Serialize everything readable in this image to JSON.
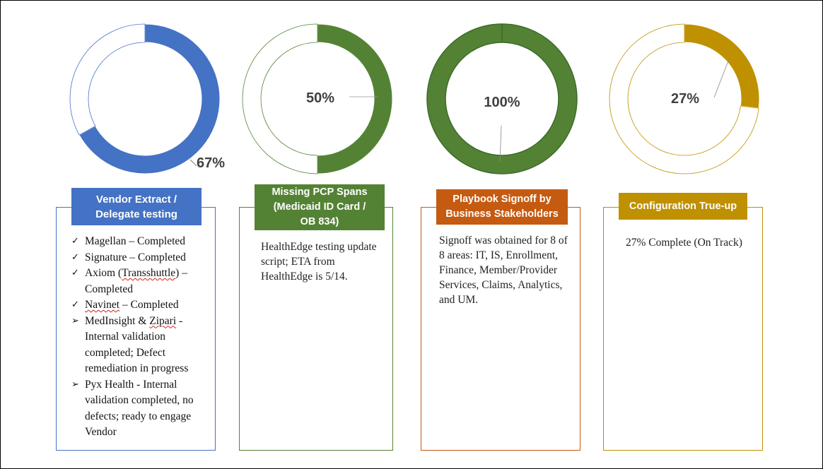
{
  "colors": {
    "blue": "#4472C4",
    "green": "#548235",
    "green_dark": "#3D6B2A",
    "orange": "#C55A11",
    "gold": "#BF9000",
    "text": "#404040"
  },
  "chart_data": [
    {
      "type": "pie",
      "subtype": "doughnut",
      "series": [
        {
          "values": [
            67,
            33
          ]
        }
      ],
      "data_label": "67%",
      "color": "#4472C4"
    },
    {
      "type": "pie",
      "subtype": "doughnut",
      "series": [
        {
          "values": [
            50,
            50
          ]
        }
      ],
      "data_label": "50%",
      "color": "#548235"
    },
    {
      "type": "pie",
      "subtype": "doughnut",
      "series": [
        {
          "values": [
            100,
            0
          ]
        }
      ],
      "data_label": "100%",
      "color": "#548235"
    },
    {
      "type": "pie",
      "subtype": "doughnut",
      "series": [
        {
          "values": [
            27,
            73
          ]
        }
      ],
      "data_label": "27%",
      "color": "#BF9000"
    }
  ],
  "panels": [
    {
      "title_line1": "Vendor Extract /",
      "title_line2": "Delegate testing",
      "items": [
        {
          "marker": "check-icon",
          "text1": "Magellan – Completed"
        },
        {
          "marker": "check-icon",
          "text1": "Signature – Completed"
        },
        {
          "marker": "check-icon",
          "text1": " Axiom (",
          "squiggle": "Transshuttle",
          "text2": ") –",
          "text3": "Completed"
        },
        {
          "marker": "check-icon",
          "squiggle": "Navinet",
          "text2": " – Completed"
        },
        {
          "marker": "arrowhead-icon",
          "text1": " MedInsight & ",
          "squiggle": "Zipari",
          "text2": " -",
          "text3": "Internal validation completed; Defect remediation in progress"
        },
        {
          "marker": "arrowhead-icon",
          "text1": "Pyx Health - Internal validation completed, no defects; ready to engage Vendor"
        }
      ]
    },
    {
      "title_line1": "Missing PCP Spans",
      "title_line2": "(Medicaid ID Card /",
      "title_line3": "OB 834)",
      "body": "HealthEdge testing update script; ETA from HealthEdge is 5/14."
    },
    {
      "title_line1": "Playbook Signoff by",
      "title_line2": "Business Stakeholders",
      "body": "Signoff was obtained for 8 of 8 areas: IT, IS, Enrollment, Finance, Member/Provider Services, Claims, Analytics, and UM."
    },
    {
      "title_line1": "Configuration True-up",
      "body": "27% Complete (On Track)"
    }
  ]
}
